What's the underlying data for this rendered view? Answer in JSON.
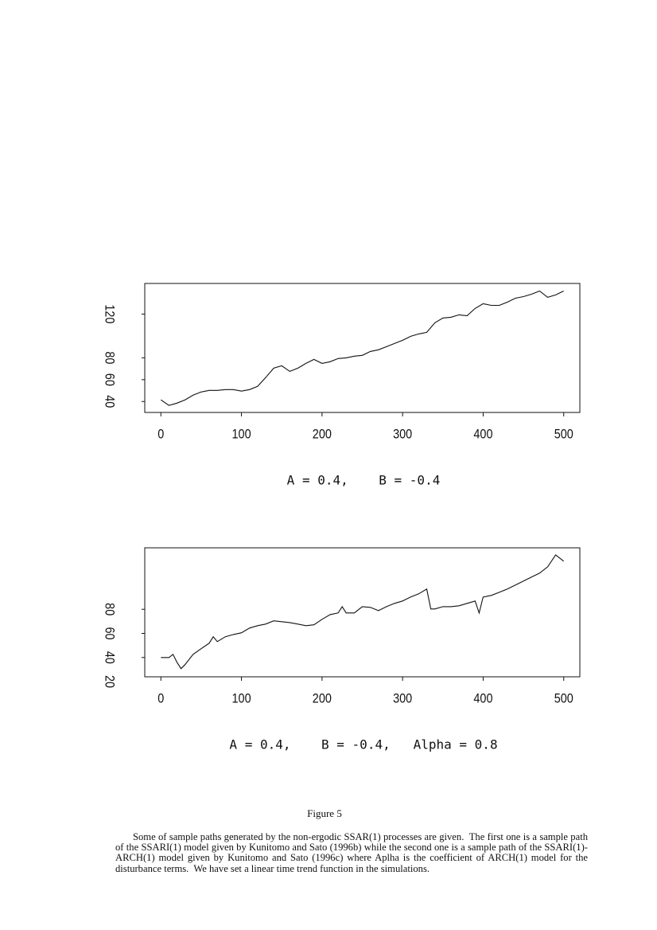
{
  "chart_data": [
    {
      "type": "line",
      "xlabel": "A = 0.4,    B = -0.4",
      "x": [
        0,
        10,
        20,
        30,
        40,
        50,
        60,
        70,
        80,
        90,
        100,
        110,
        120,
        130,
        140,
        150,
        160,
        170,
        180,
        190,
        200,
        210,
        220,
        230,
        240,
        250,
        260,
        270,
        280,
        290,
        300,
        310,
        320,
        330,
        340,
        350,
        360,
        370,
        380,
        390,
        400,
        410,
        420,
        430,
        440,
        450,
        460,
        470,
        480,
        490,
        500
      ],
      "series": [
        {
          "color": "#111111",
          "values": [
            41.5,
            36.4,
            38.5,
            41.5,
            45.8,
            48.7,
            50.2,
            50.2,
            50.9,
            50.9,
            49.5,
            50.9,
            53.8,
            61.8,
            70.5,
            72.7,
            67.6,
            70.5,
            74.9,
            78.5,
            74.9,
            76.4,
            79.3,
            80,
            81.5,
            82.2,
            85.8,
            87.3,
            90.2,
            93.1,
            96,
            99.6,
            101.8,
            103.3,
            112,
            116.4,
            117.1,
            119.3,
            118.5,
            125.1,
            129.5,
            128,
            128,
            130.9,
            134.5,
            136,
            138.2,
            141.1,
            135.3,
            137.5,
            141.1
          ]
        }
      ],
      "xlim": [
        -20,
        520
      ],
      "ylim": [
        30,
        148
      ],
      "xticks": [
        0,
        100,
        200,
        300,
        400,
        500
      ],
      "yticks": [
        40,
        60,
        80,
        120
      ]
    },
    {
      "type": "line",
      "xlabel": "A = 0.4,    B = -0.4,   Alpha = 0.8",
      "x": [
        0,
        10,
        15,
        20,
        25,
        30,
        40,
        50,
        60,
        65,
        70,
        80,
        90,
        100,
        110,
        120,
        130,
        140,
        150,
        160,
        170,
        180,
        190,
        200,
        210,
        220,
        225,
        230,
        240,
        250,
        260,
        270,
        280,
        290,
        300,
        310,
        320,
        330,
        335,
        340,
        350,
        360,
        370,
        380,
        390,
        395,
        400,
        410,
        420,
        430,
        440,
        450,
        460,
        470,
        480,
        490,
        500
      ],
      "series": [
        {
          "color": "#111111",
          "values": [
            40,
            40,
            42.6,
            36,
            30.8,
            34.1,
            42.6,
            47.3,
            51.9,
            57.2,
            53.2,
            57.2,
            59.1,
            60.5,
            64.4,
            66.4,
            67.7,
            70.4,
            69.7,
            69,
            67.7,
            66.4,
            67.1,
            71.7,
            75.6,
            77,
            82.2,
            77,
            77,
            82.2,
            81.6,
            78.9,
            82.2,
            84.9,
            86.9,
            90.2,
            92.8,
            96.8,
            80.3,
            80.3,
            82.2,
            82.2,
            82.9,
            84.9,
            86.9,
            77,
            90.2,
            91.5,
            94.1,
            96.8,
            100.1,
            103.4,
            106.7,
            110,
            115.2,
            125.1,
            119.9
          ]
        }
      ],
      "xlim": [
        -20,
        520
      ],
      "ylim": [
        24,
        131
      ],
      "xticks": [
        0,
        100,
        200,
        300,
        400,
        500
      ],
      "yticks": [
        20,
        40,
        60,
        80
      ]
    }
  ],
  "figure": {
    "label": "Figure 5",
    "caption": "Some of sample paths generated by the non-ergodic SSAR(1) processes are given.  The first one is a sample path of the SSARI(1) model given by Kunitomo and Sato (1996b) while the second one is a sample path of the SSARI(1)-ARCH(1) model given by Kunitomo and Sato (1996c) where Aplha is the coefficient of ARCH(1) model for the disturbance terms.  We have set a linear time trend function in the simulations."
  }
}
